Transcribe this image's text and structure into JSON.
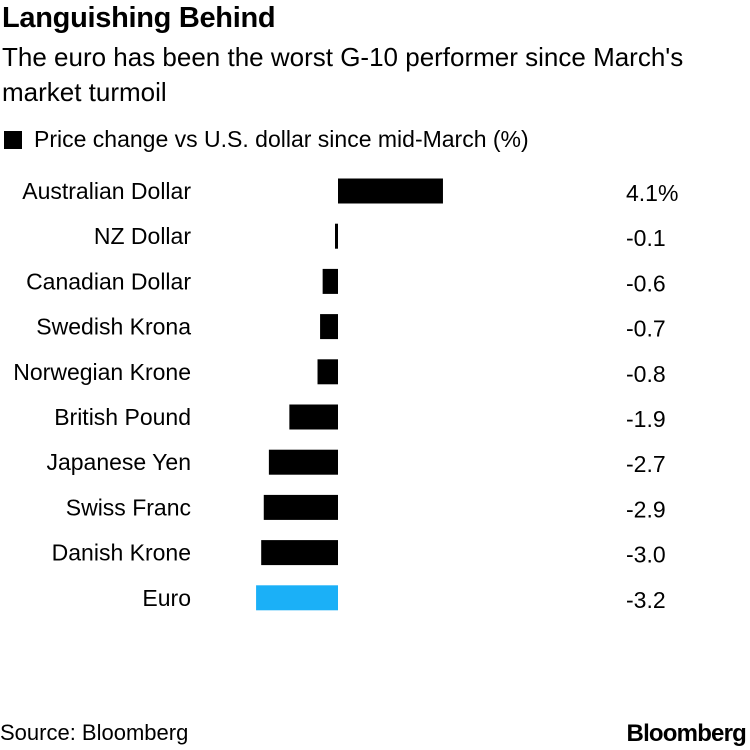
{
  "title": "Languishing Behind",
  "subtitle": "The euro has been the worst G-10 performer since March's market turmoil",
  "legend_label": "Price change vs U.S. dollar since mid-March (%)",
  "source": "Source: Bloomberg",
  "logo": "Bloomberg",
  "colors": {
    "default_bar": "#000000",
    "highlight_bar": "#1bb0f7"
  },
  "chart_data": {
    "type": "bar",
    "orientation": "horizontal",
    "categories": [
      "Australian Dollar",
      "NZ Dollar",
      "Canadian Dollar",
      "Swedish Krona",
      "Norwegian Krone",
      "British Pound",
      "Japanese Yen",
      "Swiss Franc",
      "Danish Krone",
      "Euro"
    ],
    "values": [
      4.1,
      -0.1,
      -0.6,
      -0.7,
      -0.8,
      -1.9,
      -2.7,
      -2.9,
      -3.0,
      -3.2
    ],
    "value_labels": [
      "4.1%",
      "-0.1",
      "-0.6",
      "-0.7",
      "-0.8",
      "-1.9",
      "-2.7",
      "-2.9",
      "-3.0",
      "-3.2"
    ],
    "highlight": "Euro",
    "series": [
      {
        "name": "Price change vs U.S. dollar since mid-March (%)"
      }
    ],
    "grid": false
  }
}
